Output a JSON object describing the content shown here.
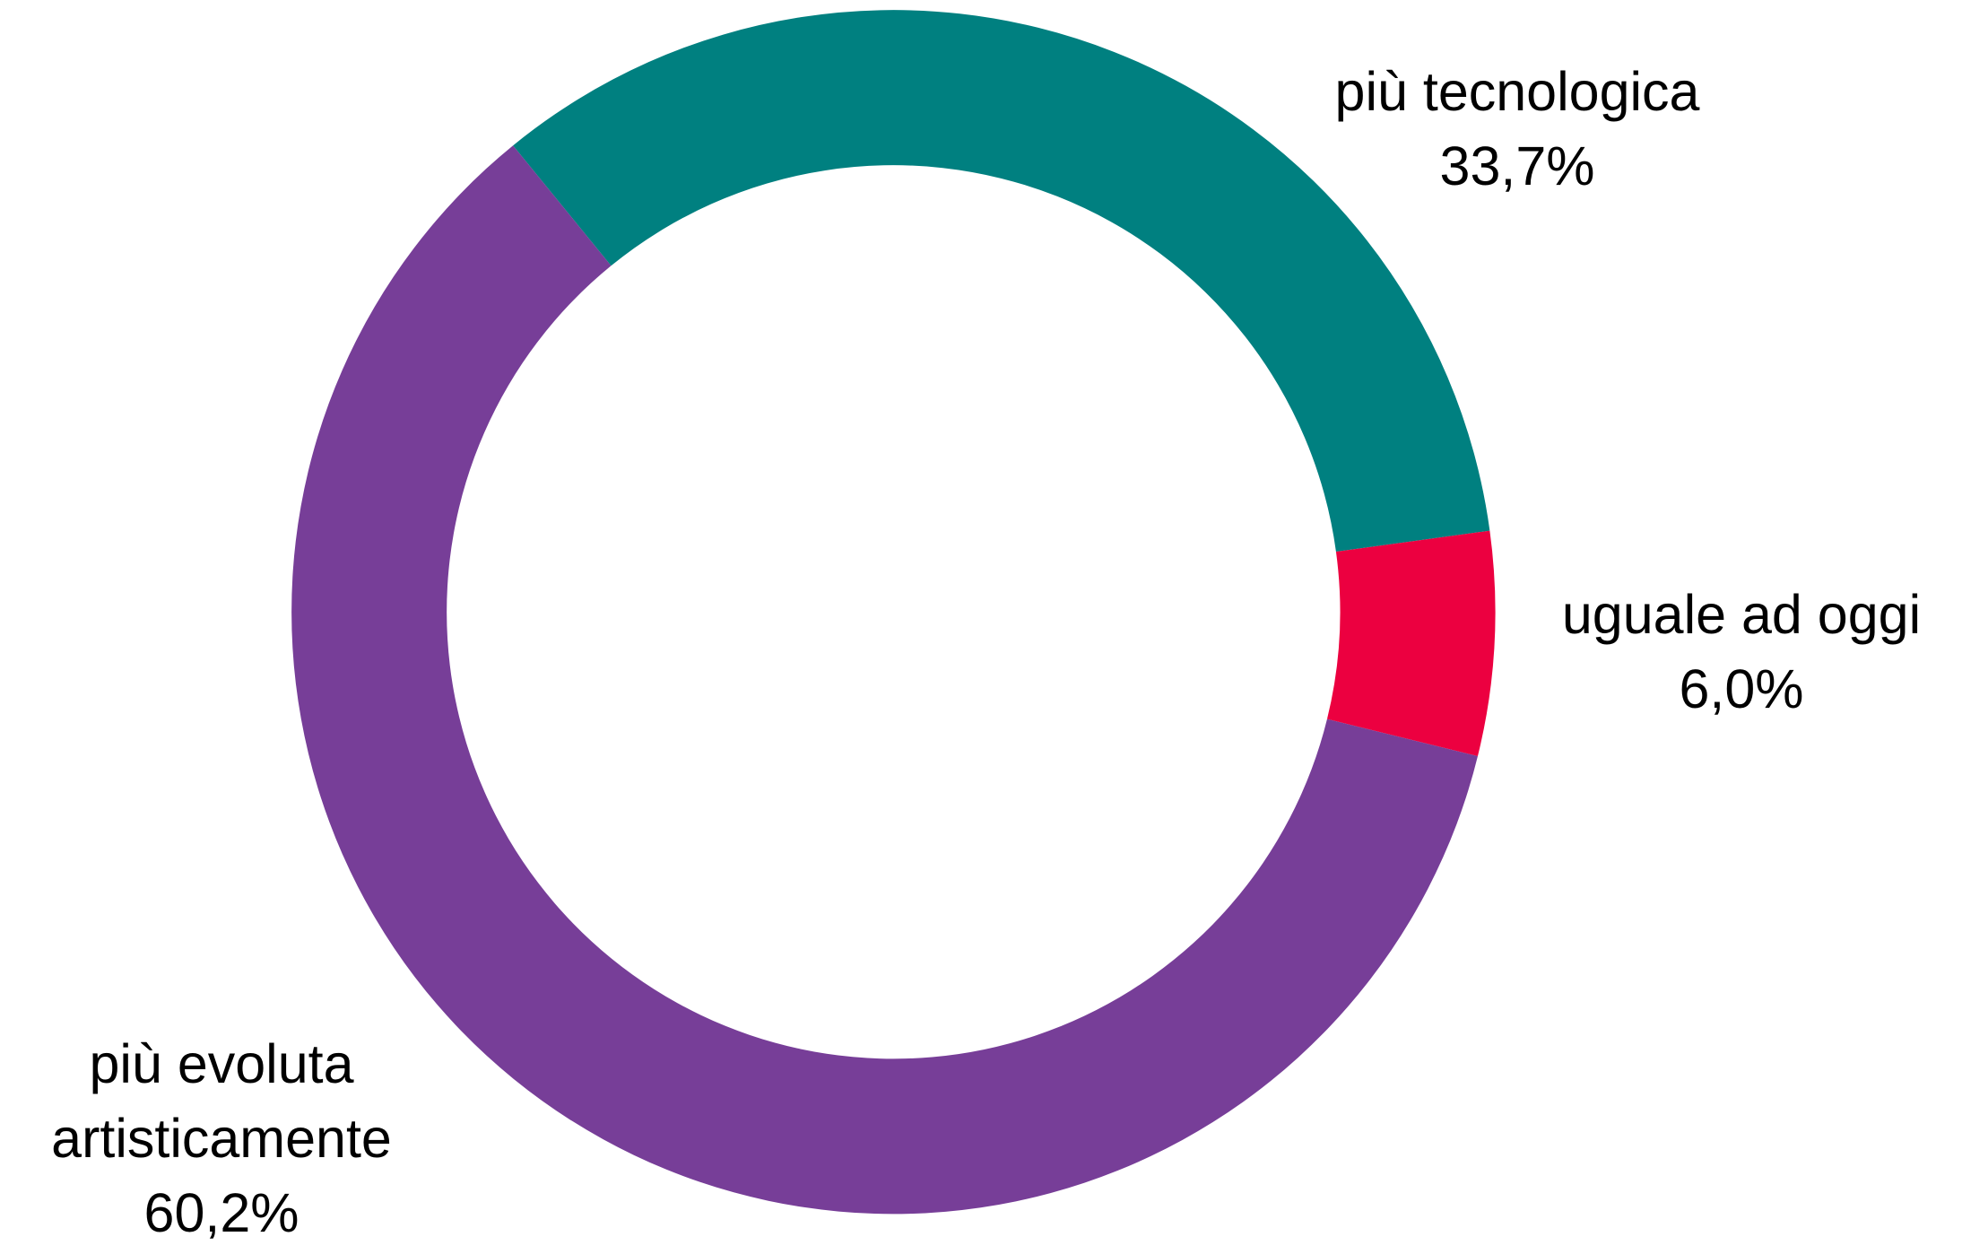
{
  "chart_data": {
    "type": "donut",
    "categories": [
      "più tecnologica",
      "uguale ad oggi",
      "più evoluta artisticamente"
    ],
    "values": [
      33.7,
      6.0,
      60.2
    ],
    "value_labels": [
      "33,7%",
      "6,0%",
      "60,2%"
    ],
    "colors": [
      "#008080",
      "#ec0040",
      "#773e98"
    ]
  }
}
